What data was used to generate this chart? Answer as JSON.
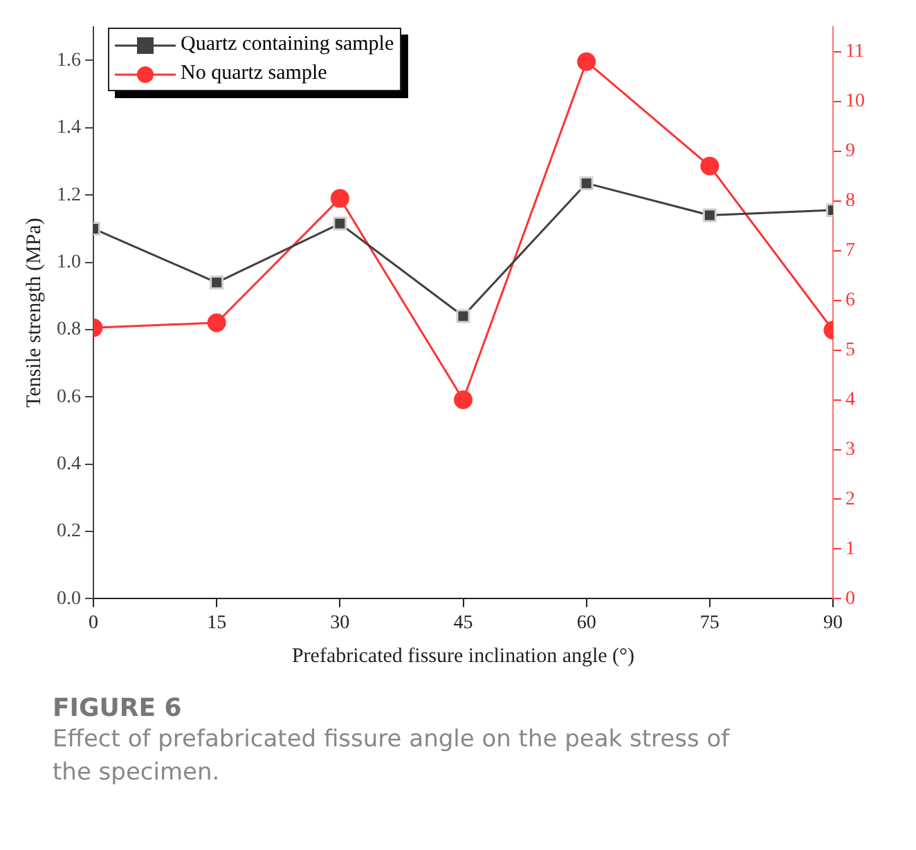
{
  "chart_data": {
    "type": "line",
    "title": "FIGURE 6",
    "subtitle": "Effect of prefabricated fissure angle on the peak stress of the specimen.",
    "xlabel": "Prefabricated fissure inclination angle (°)",
    "ylabel": "Tensile strength (MPa)",
    "x": [
      0,
      15,
      30,
      45,
      60,
      75,
      90
    ],
    "xlim": [
      0,
      90
    ],
    "xticks": [
      0,
      15,
      30,
      45,
      60,
      75,
      90
    ],
    "ylim": [
      0,
      1.7
    ],
    "yticks": [
      {
        "value": 0,
        "label": "0.0"
      },
      0.2,
      0.4,
      0.6,
      0.8,
      {
        "value": 1,
        "label": "1.0"
      },
      1.2,
      1.4,
      1.6
    ],
    "y2lim": [
      0,
      11.5
    ],
    "y2ticks": [
      0,
      1,
      2,
      3,
      4,
      5,
      6,
      7,
      8,
      9,
      10,
      11
    ],
    "series": [
      {
        "name": "Quartz containing sample",
        "color": "#404040",
        "marker": "square",
        "values": [
          1.1,
          0.94,
          1.115,
          0.84,
          1.235,
          1.14,
          1.155
        ]
      },
      {
        "name": "No quartz sample",
        "color": "#ff3333",
        "marker": "circle",
        "axis": "y2",
        "values": [
          5.45,
          5.55,
          8.05,
          4.0,
          10.8,
          8.7,
          5.4
        ]
      }
    ],
    "grid": false,
    "legend": "top left",
    "line_style": "solid"
  }
}
